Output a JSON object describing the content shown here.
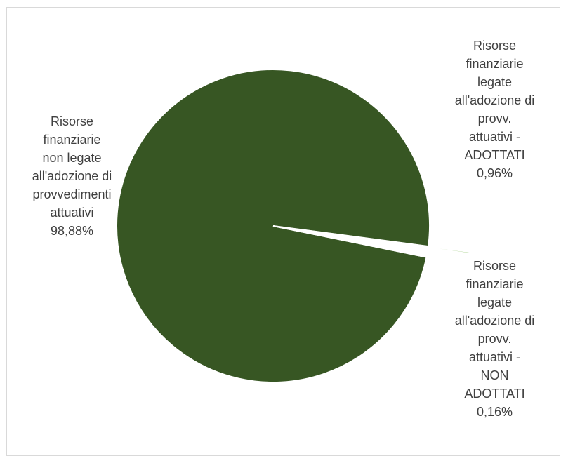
{
  "chart_data": {
    "type": "pie",
    "slices": [
      {
        "label_lines": [
          "Risorse",
          "finanziarie",
          "non legate",
          "all'adozione di",
          "provvedimenti",
          "attuativi"
        ],
        "value_label": "98,88%",
        "value": 98.88,
        "color": "#375623"
      },
      {
        "label_lines": [
          "Risorse",
          "finanziarie",
          "legate",
          "all'adozione di",
          "provv.",
          "attuativi -",
          "ADOTTATI"
        ],
        "value_label": "0,96%",
        "value": 0.96,
        "color": "#ffffff"
      },
      {
        "label_lines": [
          "Risorse",
          "finanziarie",
          "legate",
          "all'adozione di",
          "provv.",
          "attuativi -",
          "NON",
          "ADOTTATI"
        ],
        "value_label": "0,16%",
        "value": 0.16,
        "color": "#a9d18e"
      }
    ]
  }
}
